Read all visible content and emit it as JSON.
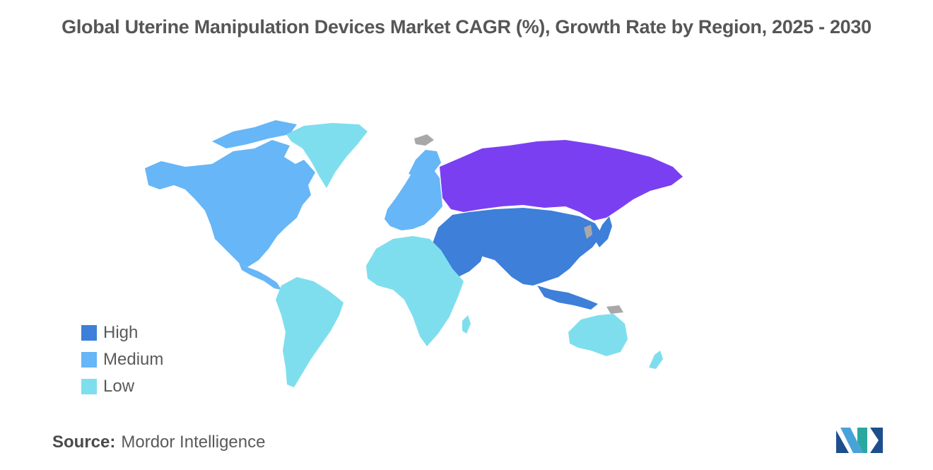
{
  "title": "Global Uterine Manipulation Devices Market CAGR (%), Growth Rate by Region, 2025 - 2030",
  "legend": [
    {
      "label": "High",
      "color": "#3d7fd9"
    },
    {
      "label": "Medium",
      "color": "#67b6f7"
    },
    {
      "label": "Low",
      "color": "#7fdeee"
    }
  ],
  "map_colors": {
    "high": "#3d7fd9",
    "medium": "#67b6f7",
    "low": "#7fdeee",
    "russia": "#7b3ff2",
    "no_data": "#a8a8a8"
  },
  "source": {
    "label": "Source:",
    "text": "Mordor Intelligence"
  },
  "logo": {
    "icon": "mordor-intelligence-logo"
  }
}
